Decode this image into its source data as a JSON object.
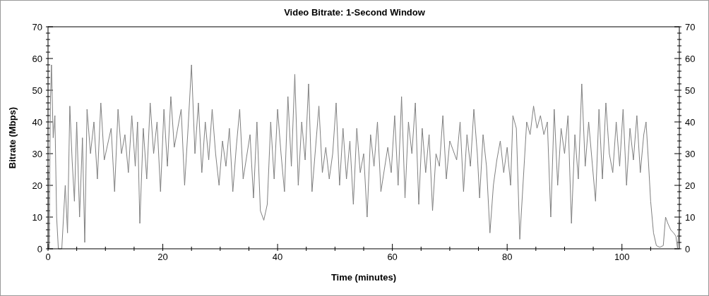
{
  "chart_data": {
    "type": "line",
    "title": "Video Bitrate: 1-Second Window",
    "xlabel": "Time (minutes)",
    "ylabel": "Bitrate (Mbps)",
    "xlim": [
      0,
      110
    ],
    "ylim": [
      0,
      70
    ],
    "y2lim": [
      0,
      70
    ],
    "xticks": [
      0,
      {
        "value": 5,
        "label": null
      },
      {
        "value": 10,
        "label": null
      },
      {
        "value": 15,
        "label": null
      },
      20,
      {
        "value": 25,
        "label": null
      },
      {
        "value": 30,
        "label": null
      },
      {
        "value": 35,
        "label": null
      },
      40,
      {
        "value": 45,
        "label": null
      },
      {
        "value": 50,
        "label": null
      },
      {
        "value": 55,
        "label": null
      },
      60,
      {
        "value": 65,
        "label": null
      },
      {
        "value": 70,
        "label": null
      },
      {
        "value": 75,
        "label": null
      },
      80,
      {
        "value": 85,
        "label": null
      },
      {
        "value": 90,
        "label": null
      },
      {
        "value": 95,
        "label": null
      },
      100,
      {
        "value": 105,
        "label": null
      }
    ],
    "yticks": [
      0,
      {
        "value": 2,
        "label": null
      },
      {
        "value": 4,
        "label": null
      },
      {
        "value": 6,
        "label": null
      },
      {
        "value": 8,
        "label": null
      },
      10,
      {
        "value": 12,
        "label": null
      },
      {
        "value": 14,
        "label": null
      },
      {
        "value": 16,
        "label": null
      },
      {
        "value": 18,
        "label": null
      },
      20,
      {
        "value": 22,
        "label": null
      },
      {
        "value": 24,
        "label": null
      },
      {
        "value": 26,
        "label": null
      },
      {
        "value": 28,
        "label": null
      },
      30,
      {
        "value": 32,
        "label": null
      },
      {
        "value": 34,
        "label": null
      },
      {
        "value": 36,
        "label": null
      },
      {
        "value": 38,
        "label": null
      },
      40,
      {
        "value": 42,
        "label": null
      },
      {
        "value": 44,
        "label": null
      },
      {
        "value": 46,
        "label": null
      },
      {
        "value": 48,
        "label": null
      },
      50,
      {
        "value": 52,
        "label": null
      },
      {
        "value": 54,
        "label": null
      },
      {
        "value": 56,
        "label": null
      },
      {
        "value": 58,
        "label": null
      },
      60,
      {
        "value": 62,
        "label": null
      },
      {
        "value": 64,
        "label": null
      },
      {
        "value": 66,
        "label": null
      },
      {
        "value": 68,
        "label": null
      },
      70
    ],
    "y2ticks": [
      0,
      {
        "value": 2,
        "label": null
      },
      {
        "value": 4,
        "label": null
      },
      {
        "value": 6,
        "label": null
      },
      {
        "value": 8,
        "label": null
      },
      10,
      {
        "value": 12,
        "label": null
      },
      {
        "value": 14,
        "label": null
      },
      {
        "value": 16,
        "label": null
      },
      {
        "value": 18,
        "label": null
      },
      20,
      {
        "value": 22,
        "label": null
      },
      {
        "value": 24,
        "label": null
      },
      {
        "value": 26,
        "label": null
      },
      {
        "value": 28,
        "label": null
      },
      30,
      {
        "value": 32,
        "label": null
      },
      {
        "value": 34,
        "label": null
      },
      {
        "value": 36,
        "label": null
      },
      {
        "value": 38,
        "label": null
      },
      40,
      {
        "value": 42,
        "label": null
      },
      {
        "value": 44,
        "label": null
      },
      {
        "value": 46,
        "label": null
      },
      {
        "value": 48,
        "label": null
      },
      50,
      {
        "value": 52,
        "label": null
      },
      {
        "value": 54,
        "label": null
      },
      {
        "value": 56,
        "label": null
      },
      {
        "value": 58,
        "label": null
      },
      60,
      {
        "value": 62,
        "label": null
      },
      {
        "value": 64,
        "label": null
      },
      {
        "value": 66,
        "label": null
      },
      {
        "value": 68,
        "label": null
      },
      70
    ],
    "grid": false,
    "line_style": "solid",
    "series": [
      {
        "color": "#7f7f7f",
        "x": [
          0,
          0.2,
          0.4,
          0.6,
          0.9,
          1.2,
          1.5,
          1.8,
          2.4,
          3,
          3.4,
          3.8,
          4.2,
          4.6,
          5,
          5.5,
          6,
          6.4,
          6.8,
          7.4,
          8,
          8.6,
          9.2,
          9.8,
          11,
          11.6,
          12.2,
          12.8,
          13.4,
          14,
          14.6,
          15.2,
          15.6,
          16,
          16.6,
          17.2,
          17.8,
          18.4,
          19,
          19.6,
          20.2,
          20.8,
          21.4,
          22,
          23.2,
          23.8,
          24.4,
          25,
          25.6,
          26.2,
          26.8,
          27.4,
          28,
          28.6,
          29.2,
          29.8,
          30.4,
          31,
          31.6,
          32.2,
          32.8,
          33.4,
          34,
          35.2,
          35.8,
          36.4,
          37,
          37.6,
          38.2,
          38.8,
          39.4,
          40,
          40.6,
          41.2,
          41.8,
          42.4,
          43,
          43.6,
          44.2,
          44.8,
          45.4,
          46,
          47.2,
          47.8,
          48.4,
          49,
          49.6,
          50.2,
          50.8,
          51.4,
          52,
          52.6,
          53.2,
          53.8,
          54.4,
          55,
          55.6,
          56.2,
          56.8,
          57.4,
          58,
          59.2,
          59.8,
          60.4,
          61,
          61.6,
          62.2,
          62.8,
          63.4,
          64,
          64.6,
          65.2,
          65.8,
          66.4,
          67,
          67.6,
          68.2,
          68.8,
          69.4,
          70,
          71.2,
          71.8,
          72.4,
          73,
          73.6,
          74.2,
          74.8,
          75.2,
          75.8,
          76.4,
          77,
          77.6,
          78.2,
          78.8,
          79.4,
          80,
          80.6,
          81,
          81.6,
          82.2,
          83.4,
          84,
          84.6,
          85.2,
          85.8,
          86.4,
          87,
          87.6,
          88.2,
          88.8,
          89.4,
          90,
          90.6,
          91.2,
          91.8,
          92.4,
          93,
          93.6,
          94.2,
          95.4,
          96,
          96.6,
          97.2,
          97.8,
          98.4,
          99,
          99.6,
          100.2,
          100.8,
          101.4,
          102,
          102.6,
          103.2,
          103.8,
          104.2,
          104.6,
          105,
          105.5,
          106,
          106.6,
          107.2,
          107.6,
          108,
          108.5,
          109,
          109.4,
          109.7,
          110
        ],
        "values": [
          25,
          0,
          45,
          58,
          35,
          42,
          10,
          0,
          0,
          20,
          5,
          45,
          28,
          15,
          40,
          10,
          35,
          2,
          44,
          30,
          40,
          22,
          46,
          28,
          38,
          18,
          44,
          30,
          36,
          24,
          42,
          26,
          40,
          8,
          38,
          22,
          46,
          30,
          40,
          18,
          44,
          26,
          48,
          32,
          44,
          20,
          38,
          58,
          30,
          46,
          24,
          40,
          28,
          44,
          30,
          20,
          34,
          26,
          38,
          18,
          32,
          44,
          22,
          36,
          16,
          40,
          12,
          9,
          14,
          40,
          22,
          44,
          30,
          18,
          48,
          26,
          55,
          20,
          40,
          28,
          52,
          18,
          45,
          24,
          32,
          22,
          30,
          46,
          20,
          38,
          22,
          34,
          14,
          38,
          24,
          30,
          10,
          36,
          26,
          40,
          18,
          32,
          24,
          42,
          20,
          48,
          16,
          40,
          30,
          46,
          14,
          38,
          24,
          36,
          12,
          30,
          26,
          42,
          22,
          34,
          28,
          40,
          18,
          36,
          26,
          44,
          30,
          16,
          36,
          26,
          5,
          20,
          28,
          34,
          24,
          32,
          20,
          42,
          38,
          3,
          40,
          36,
          45,
          38,
          42,
          36,
          40,
          10,
          44,
          20,
          38,
          30,
          42,
          8,
          36,
          22,
          52,
          26,
          40,
          15,
          44,
          22,
          46,
          30,
          24,
          40,
          26,
          44,
          20,
          38,
          28,
          42,
          24,
          36,
          40,
          28,
          15,
          5,
          1,
          0.5,
          1,
          10,
          8,
          6,
          5,
          4,
          0,
          9
        ]
      }
    ]
  }
}
